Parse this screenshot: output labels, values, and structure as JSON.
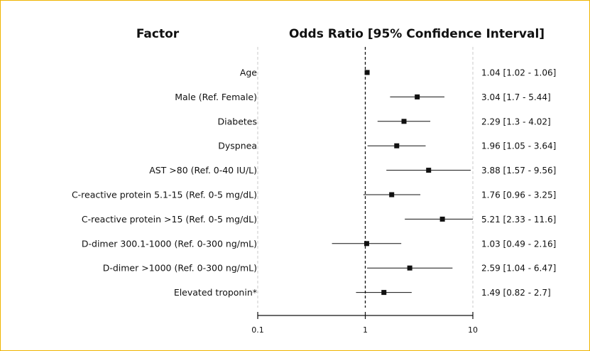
{
  "chart_data": {
    "type": "forest",
    "headers": {
      "factor": "Factor",
      "estimate": "Odds Ratio [95% Confidence Interval]"
    },
    "x_scale": "log",
    "xlim": [
      0.1,
      10
    ],
    "x_ticks": [
      0.1,
      1,
      10
    ],
    "x_tick_labels": [
      "0.1",
      "1",
      "10"
    ],
    "reference_line": 1,
    "gridlines_at": [
      0.1,
      10
    ],
    "rows": [
      {
        "label": "Age",
        "or": 1.04,
        "lower": 1.02,
        "upper": 1.06,
        "text": "1.04 [1.02 - 1.06]"
      },
      {
        "label": "Male (Ref. Female)",
        "or": 3.04,
        "lower": 1.7,
        "upper": 5.44,
        "text": "3.04 [1.7 - 5.44]"
      },
      {
        "label": "Diabetes",
        "or": 2.29,
        "lower": 1.3,
        "upper": 4.02,
        "text": "2.29 [1.3 - 4.02]"
      },
      {
        "label": "Dyspnea",
        "or": 1.96,
        "lower": 1.05,
        "upper": 3.64,
        "text": "1.96 [1.05 - 3.64]"
      },
      {
        "label": "AST >80 (Ref. 0-40 IU/L)",
        "or": 3.88,
        "lower": 1.57,
        "upper": 9.56,
        "text": "3.88 [1.57 - 9.56]"
      },
      {
        "label": "C-reactive protein 5.1-15 (Ref. 0-5 mg/dL)",
        "or": 1.76,
        "lower": 0.96,
        "upper": 3.25,
        "text": "1.76 [0.96 - 3.25]"
      },
      {
        "label": "C-reactive protein >15 (Ref. 0-5 mg/dL)",
        "or": 5.21,
        "lower": 2.33,
        "upper": 11.6,
        "text": "5.21 [2.33 - 11.6]"
      },
      {
        "label": "D-dimer 300.1-1000 (Ref. 0-300 ng/mL)",
        "or": 1.03,
        "lower": 0.49,
        "upper": 2.16,
        "text": "1.03 [0.49 - 2.16]"
      },
      {
        "label": "D-dimer >1000 (Ref. 0-300 ng/mL)",
        "or": 2.59,
        "lower": 1.04,
        "upper": 6.47,
        "text": "2.59 [1.04 - 6.47]"
      },
      {
        "label": "Elevated troponin*",
        "or": 1.49,
        "lower": 0.82,
        "upper": 2.7,
        "text": "1.49 [0.82 - 2.7]"
      }
    ],
    "colors": {
      "border": "#f0b400",
      "marks": "#111111",
      "gridline": "#c8c8c8"
    }
  }
}
